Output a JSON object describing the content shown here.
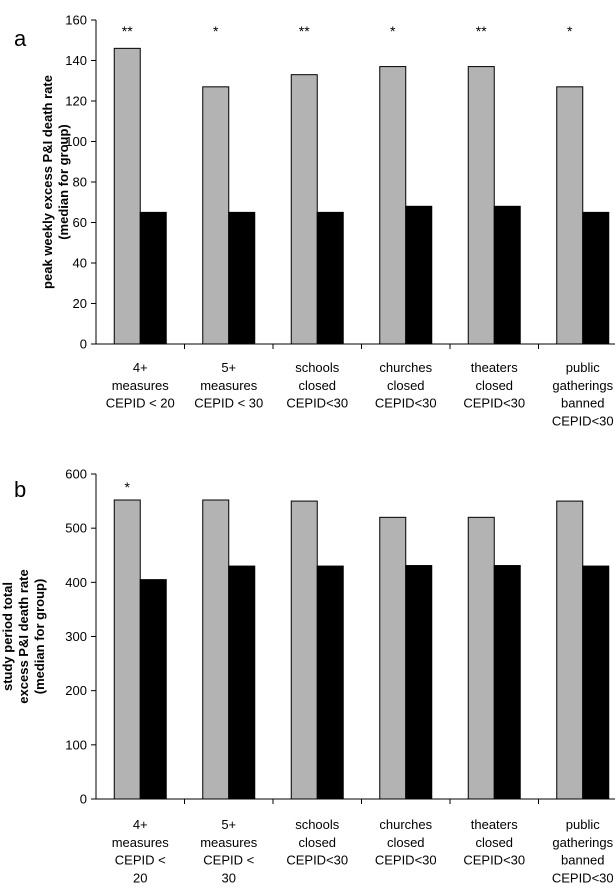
{
  "chart_data": [
    {
      "type": "bar",
      "panel_label": "a",
      "ylabel": [
        "peak weekly excess P&I death rate",
        "(median for group)"
      ],
      "ylim": [
        0,
        160
      ],
      "yticks": [
        0,
        20,
        40,
        60,
        80,
        100,
        120,
        140,
        160
      ],
      "categories": [
        [
          "4+",
          "measures",
          "CEPID < 20"
        ],
        [
          "5+",
          "measures",
          "CEPID < 30"
        ],
        [
          "schools",
          "closed",
          "CEPID<30"
        ],
        [
          "churches",
          "closed",
          "CEPID<30"
        ],
        [
          "theaters",
          "closed",
          "CEPID<30"
        ],
        [
          "public",
          "gatherings",
          "banned",
          "CEPID<30"
        ]
      ],
      "series": [
        {
          "color": "#b3b3b3",
          "values": [
            146,
            127,
            133,
            137,
            137,
            127
          ]
        },
        {
          "color": "#000000",
          "values": [
            65,
            65,
            65,
            68,
            68,
            65
          ]
        }
      ],
      "annotations": [
        "**",
        "*",
        "**",
        "*",
        "**",
        "*"
      ],
      "grid": false
    },
    {
      "type": "bar",
      "panel_label": "b",
      "ylabel": [
        "study period total",
        "excess P&I death rate",
        "(median for group)"
      ],
      "ylim": [
        0,
        600
      ],
      "yticks": [
        0,
        100,
        200,
        300,
        400,
        500,
        600
      ],
      "categories": [
        [
          "4+",
          "measures",
          "CEPID <",
          "20"
        ],
        [
          "5+",
          "measures",
          "CEPID <",
          "30"
        ],
        [
          "schools",
          "closed",
          "CEPID<30"
        ],
        [
          "churches",
          "closed",
          "CEPID<30"
        ],
        [
          "theaters",
          "closed",
          "CEPID<30"
        ],
        [
          "public",
          "gatherings",
          "banned",
          "CEPID<30"
        ]
      ],
      "series": [
        {
          "color": "#b3b3b3",
          "values": [
            552,
            552,
            550,
            520,
            520,
            550
          ]
        },
        {
          "color": "#000000",
          "values": [
            405,
            430,
            430,
            431,
            431,
            430
          ]
        }
      ],
      "annotations": [
        "*",
        "",
        "",
        "",
        "",
        ""
      ],
      "grid": false
    }
  ]
}
